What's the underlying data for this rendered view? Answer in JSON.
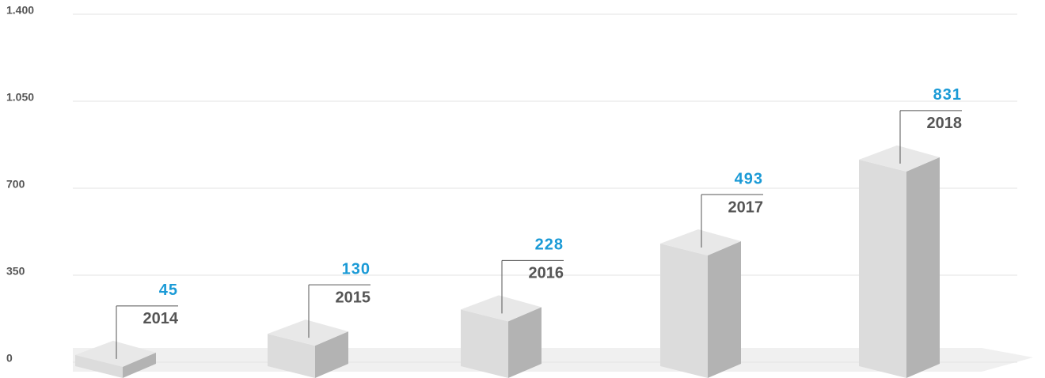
{
  "chart_data": {
    "type": "bar3d",
    "categories": [
      "2014",
      "2015",
      "2016",
      "2017",
      "2018"
    ],
    "values": [
      45,
      130,
      228,
      493,
      831
    ],
    "ylim": [
      0,
      1400
    ],
    "yticks": [
      0,
      350,
      700,
      {
        "value": 1050,
        "label": "1.050"
      },
      {
        "value": 1400,
        "label": "1.400"
      }
    ],
    "grid": true,
    "value_color": "#1a9ad6",
    "color": "#dcdcdc"
  }
}
